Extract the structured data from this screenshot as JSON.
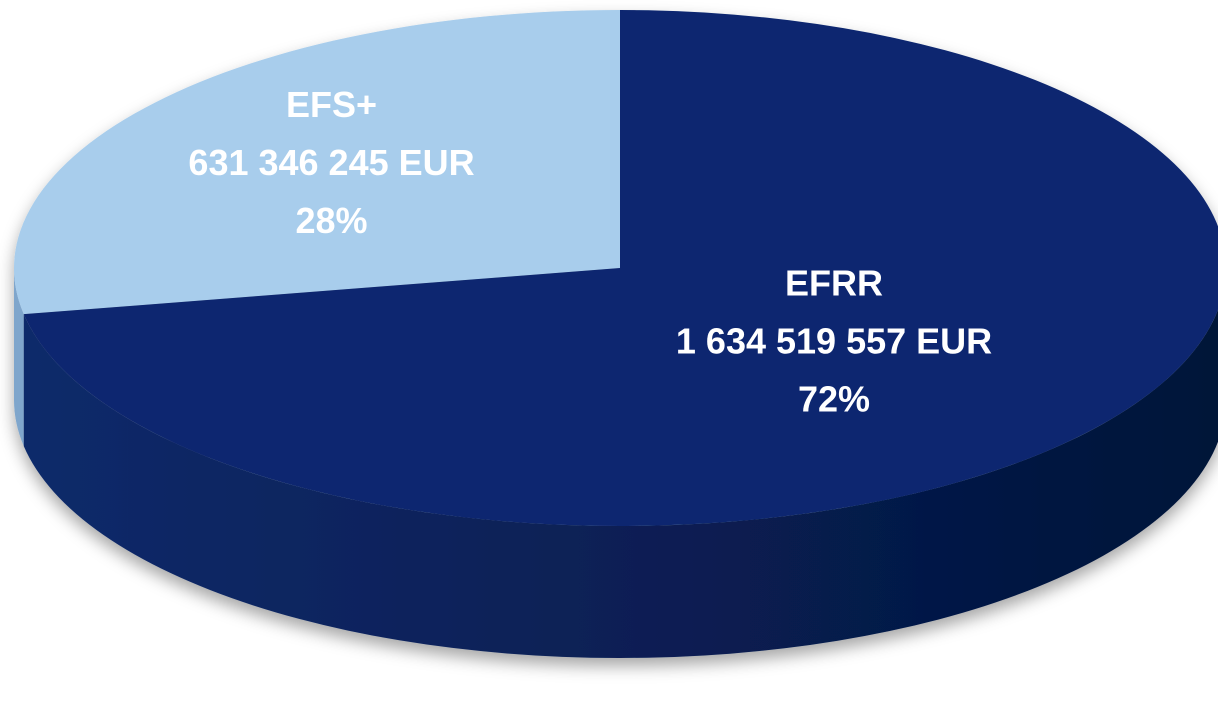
{
  "chart_data": {
    "type": "pie3d",
    "categories": [
      "EFS+",
      "EFRR"
    ],
    "values": [
      631346245,
      1634519557
    ],
    "value_labels": [
      "631 346 245 EUR",
      "1 634 519 557 EUR"
    ],
    "percent_labels": [
      "28%",
      "72%"
    ],
    "colors": [
      "#a8cdec",
      "#0a2870"
    ]
  }
}
